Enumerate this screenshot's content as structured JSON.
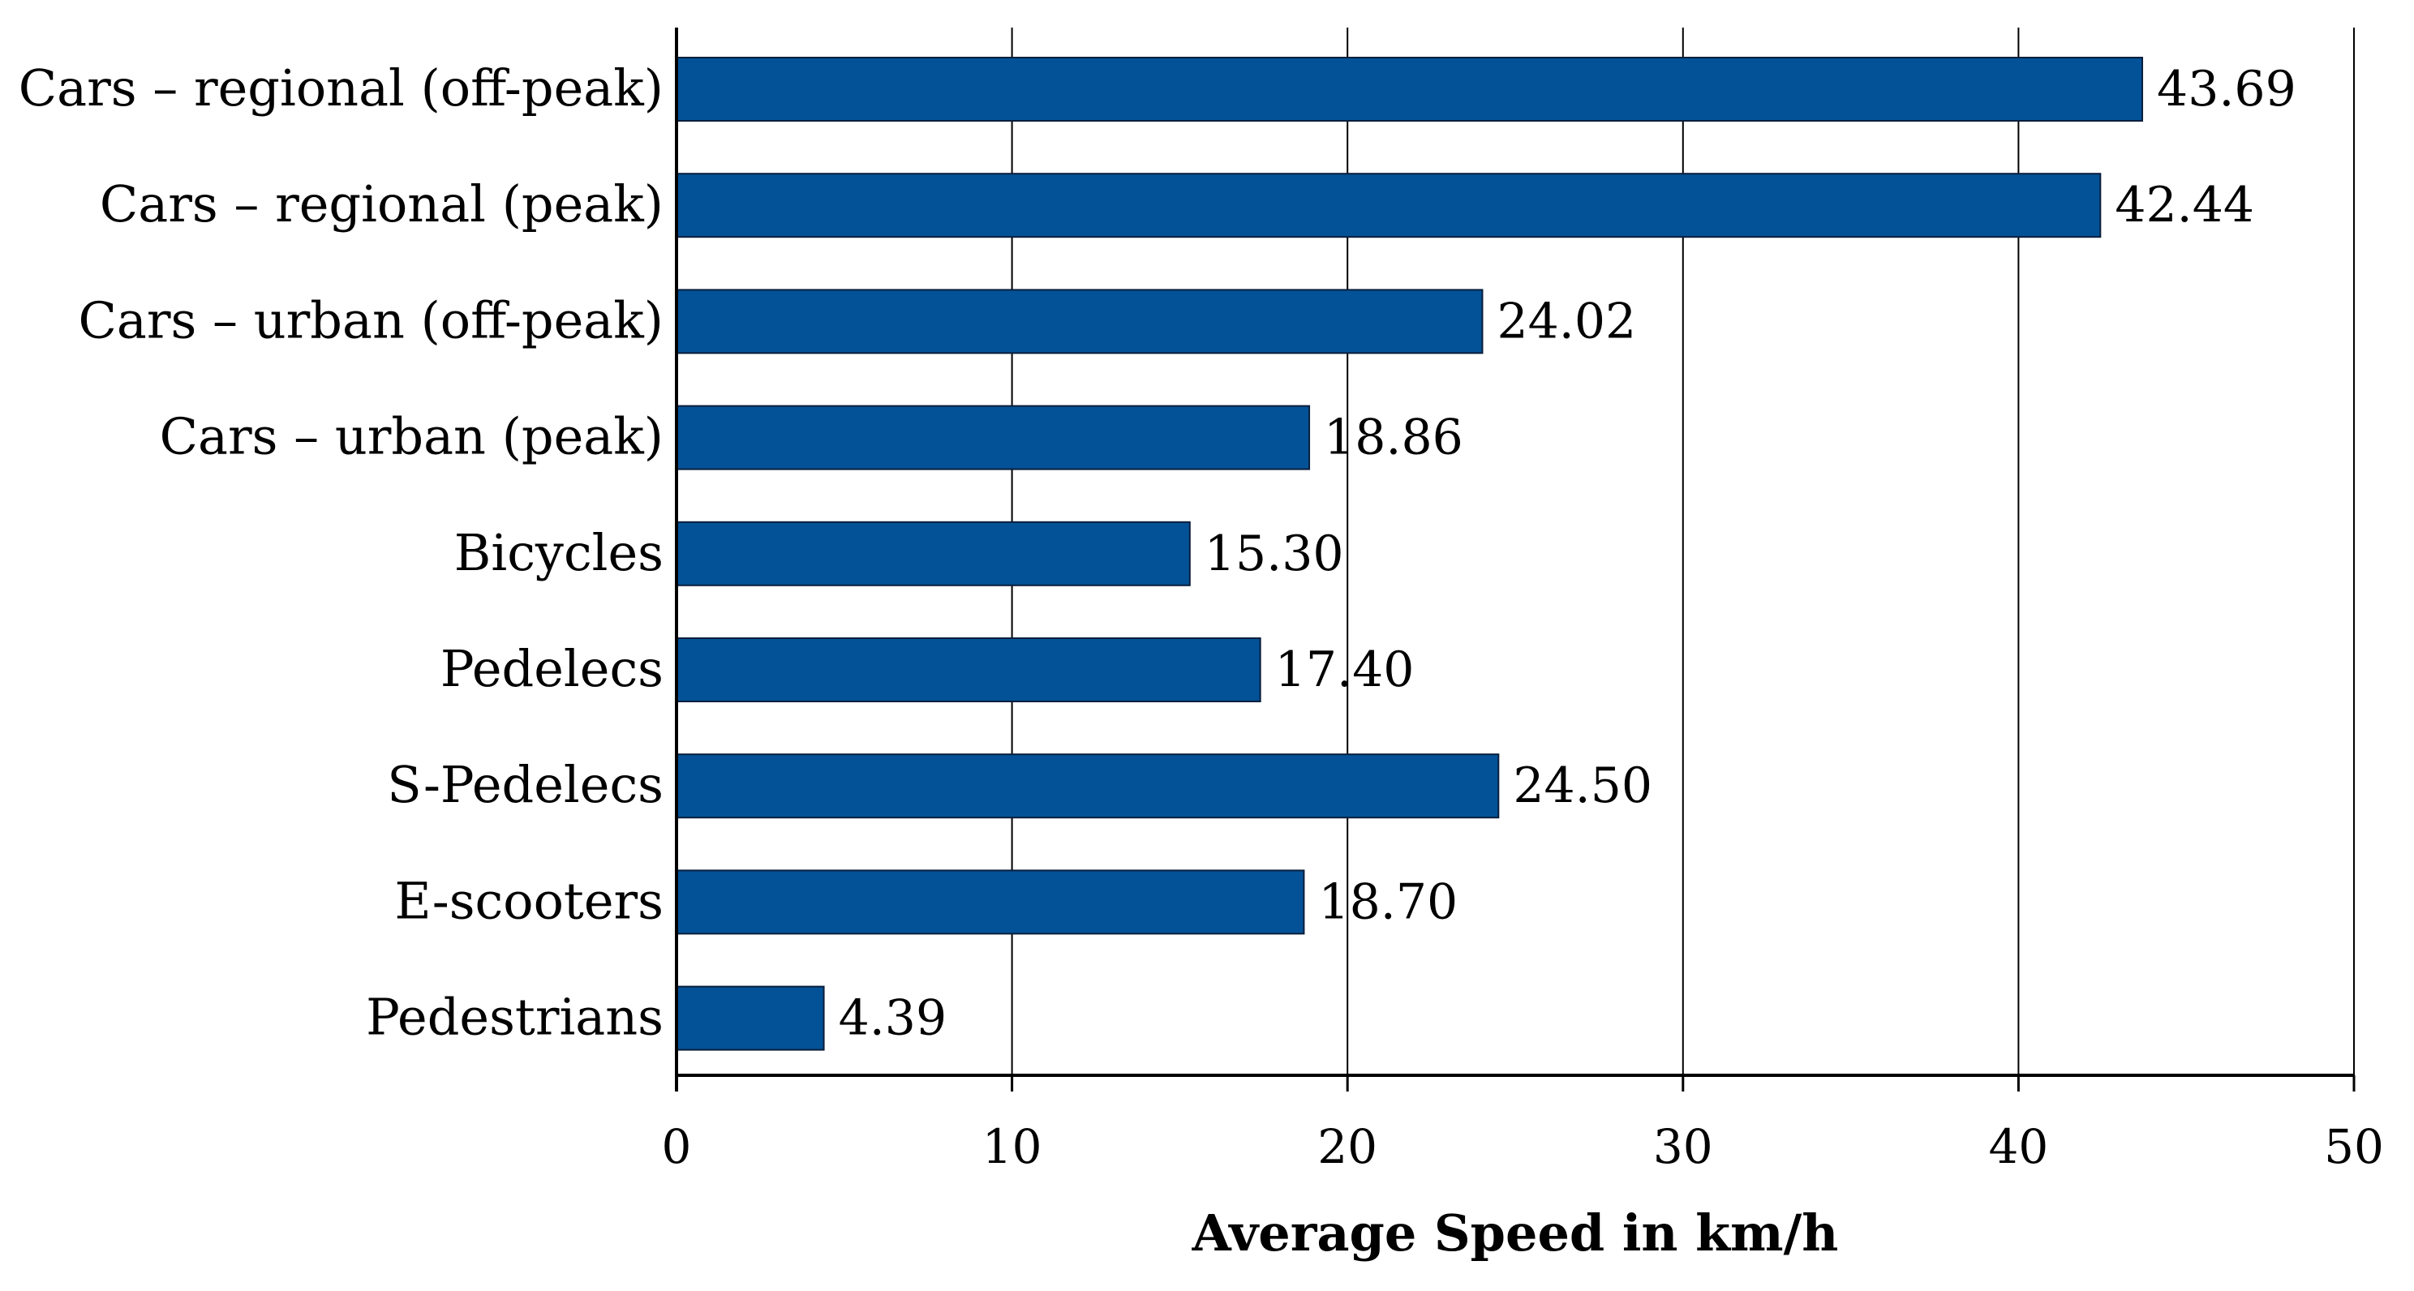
{
  "chart_data": {
    "type": "bar",
    "orientation": "horizontal",
    "categories": [
      "Cars – regional (off-peak)",
      "Cars – regional (peak)",
      "Cars – urban (off-peak)",
      "Cars – urban (peak)",
      "Bicycles",
      "Pedelecs",
      "S-Pedelecs",
      "E-scooters",
      "Pedestrians"
    ],
    "values": [
      43.69,
      42.44,
      24.02,
      18.86,
      15.3,
      17.4,
      24.5,
      18.7,
      4.39
    ],
    "value_labels": [
      "43.69",
      "42.44",
      "24.02",
      "18.86",
      "15.30",
      "17.40",
      "24.50",
      "18.70",
      "4.39"
    ],
    "title": "",
    "xlabel": "Average Speed in km/h",
    "ylabel": "",
    "xlim": [
      0,
      50
    ],
    "x_ticks": [
      0,
      10,
      20,
      30,
      40,
      50
    ],
    "x_tick_labels": [
      "0",
      "10",
      "20",
      "30",
      "40",
      "50"
    ],
    "grid": "vertical",
    "legend": "none",
    "colors": {
      "bar": "#035297",
      "bar_edge": "#0a1e3c",
      "grid": "#000000",
      "axis": "#000000"
    }
  }
}
